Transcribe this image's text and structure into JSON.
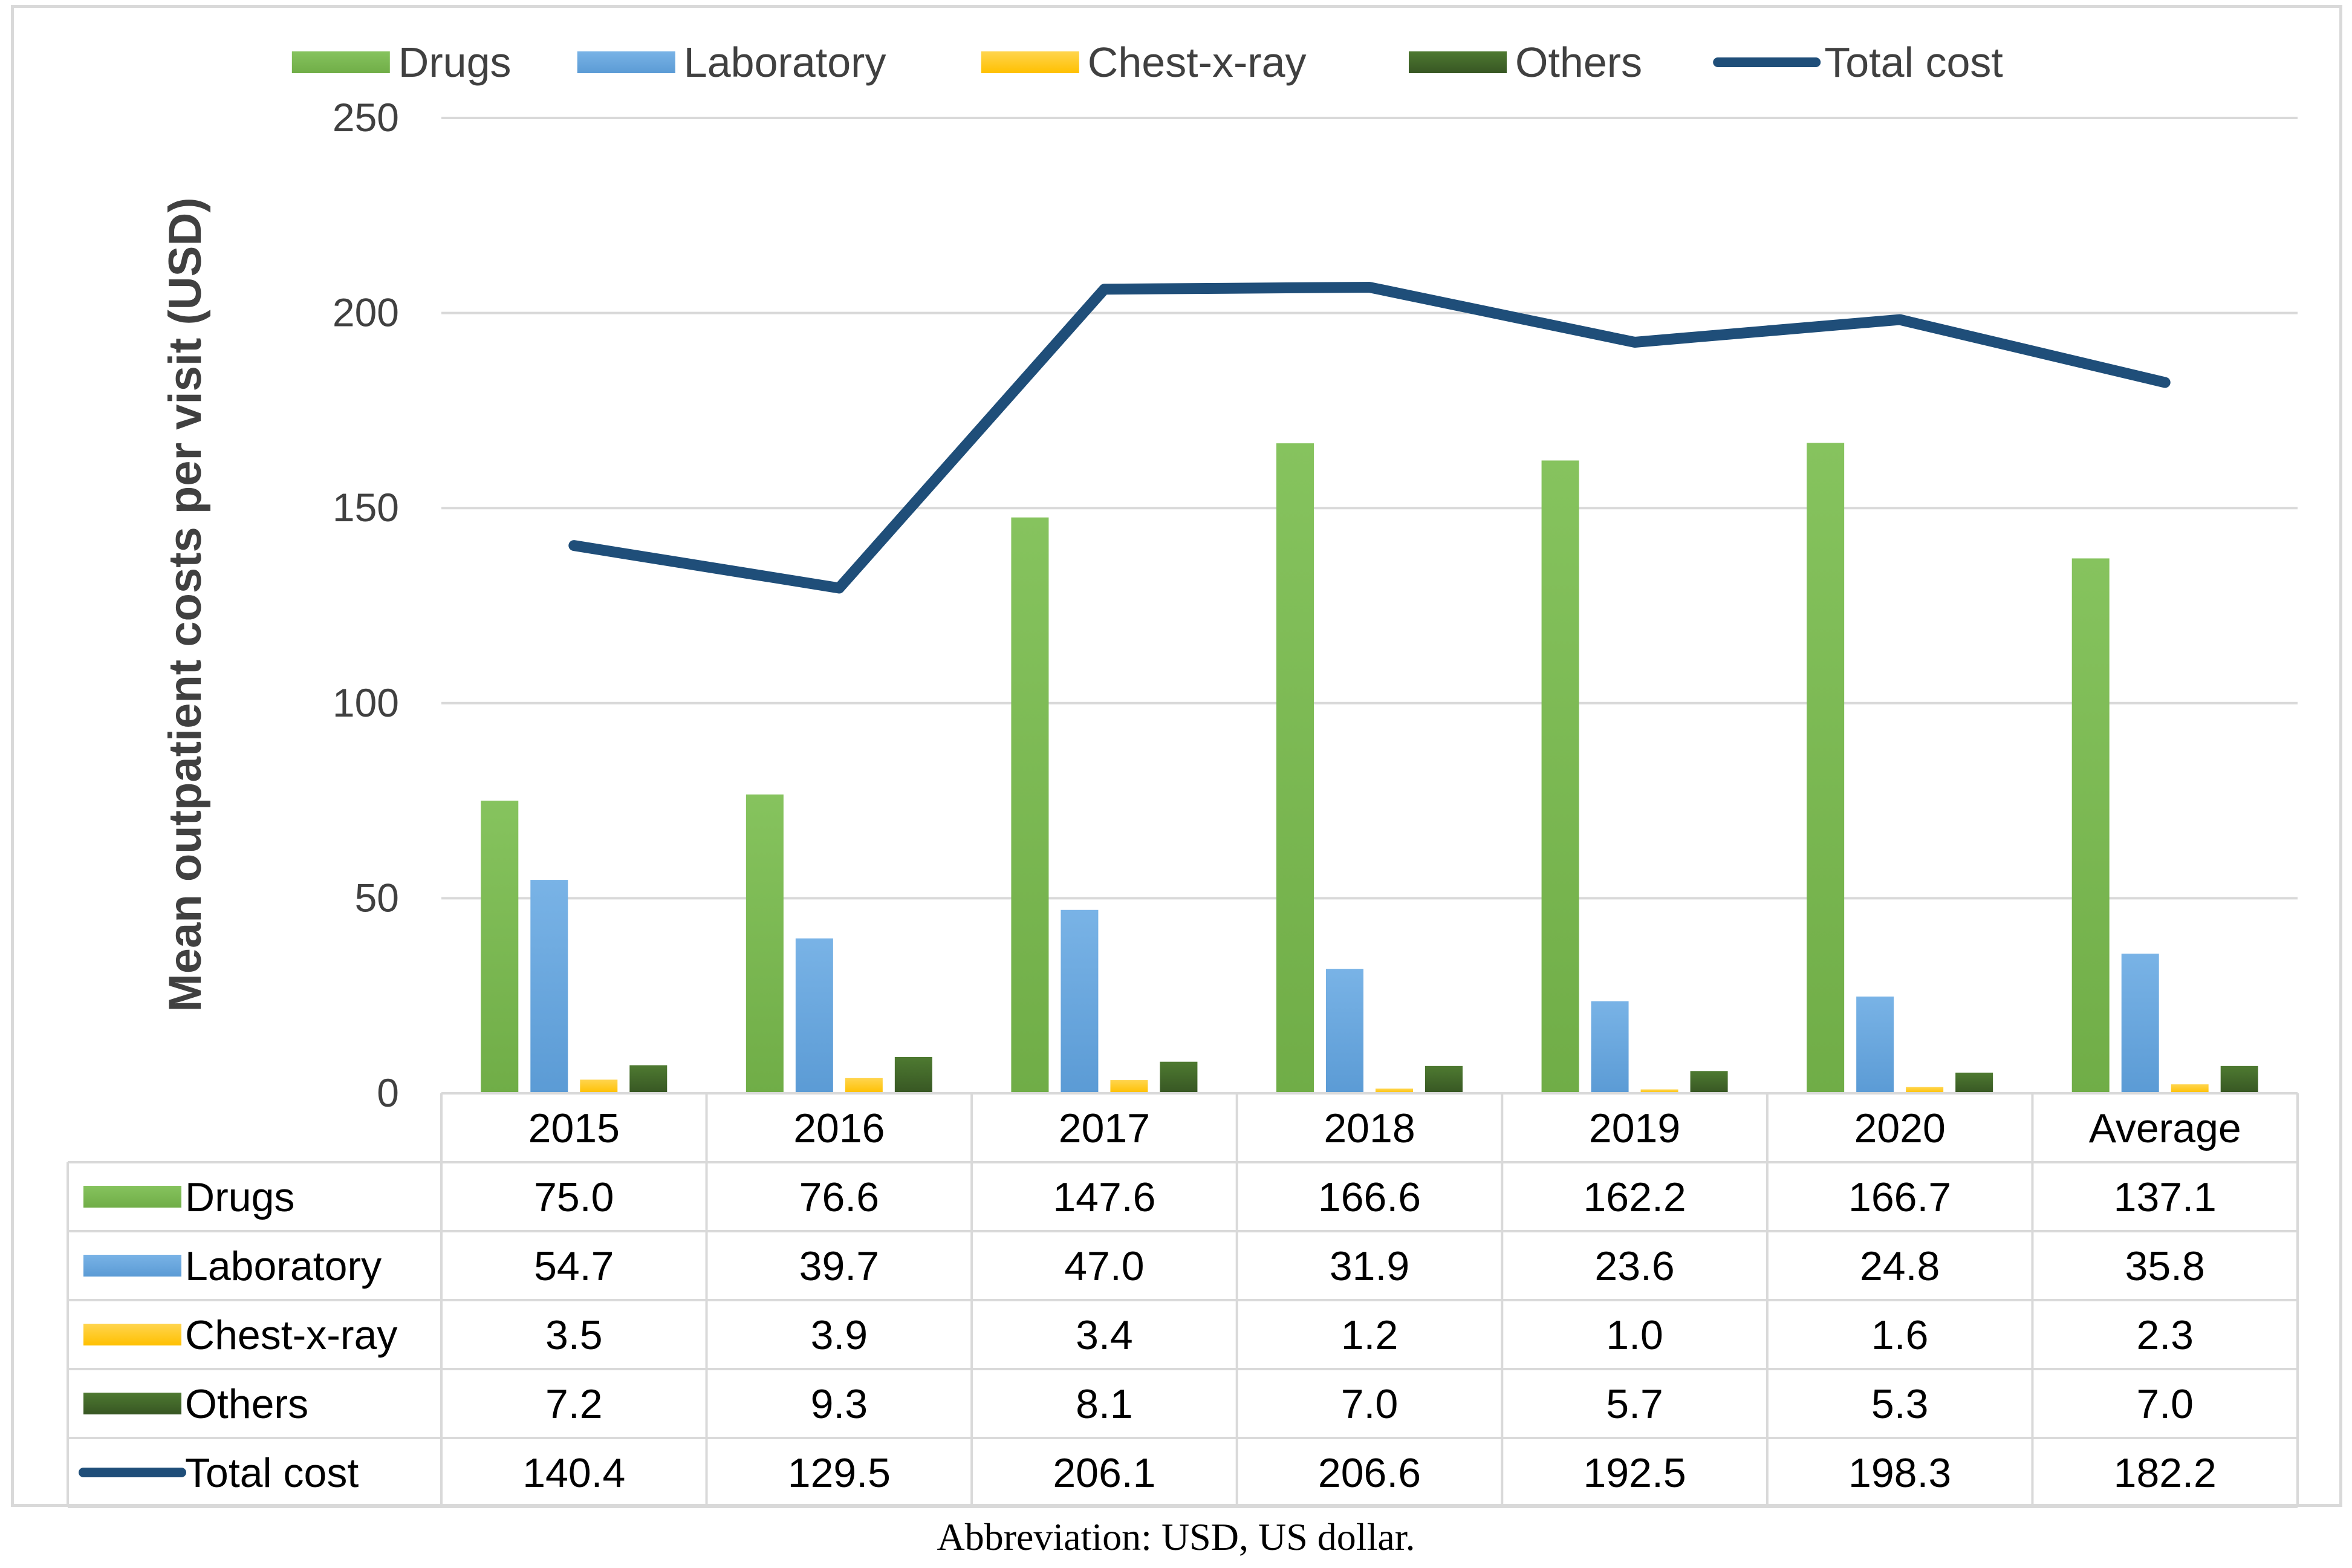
{
  "chart_data": {
    "type": "bar",
    "title": "",
    "xlabel": "",
    "ylabel": "Mean outpatient costs per visit  (USD)",
    "ylim": [
      0,
      250
    ],
    "yticks": [
      0,
      50,
      100,
      150,
      200,
      250
    ],
    "grid": true,
    "legend_position": "top",
    "categories": [
      "2015",
      "2016",
      "2017",
      "2018",
      "2019",
      "2020",
      "Average"
    ],
    "series": [
      {
        "name": "Drugs",
        "kind": "bar",
        "color": "#70ad47",
        "colorLight": "#86c35e",
        "values": [
          75.0,
          76.6,
          147.6,
          166.6,
          162.2,
          166.7,
          137.1
        ],
        "labels": [
          "75.0",
          "76.6",
          "147.6",
          "166.6",
          "162.2",
          "166.7",
          "137.1"
        ]
      },
      {
        "name": "Laboratory",
        "kind": "bar",
        "color": "#5b9bd5",
        "colorLight": "#79b3e6",
        "values": [
          54.7,
          39.7,
          47.0,
          31.9,
          23.6,
          24.8,
          35.8
        ],
        "labels": [
          "54.7",
          "39.7",
          "47.0",
          "31.9",
          "23.6",
          "24.8",
          "35.8"
        ]
      },
      {
        "name": "Chest-x-ray",
        "kind": "bar",
        "color": "#ffc000",
        "colorLight": "#ffd54f",
        "values": [
          3.5,
          3.9,
          3.4,
          1.2,
          1.0,
          1.6,
          2.3
        ],
        "labels": [
          "3.5",
          "3.9",
          "3.4",
          "1.2",
          "1.0",
          "1.6",
          "2.3"
        ]
      },
      {
        "name": "Others",
        "kind": "bar",
        "color": "#375623",
        "colorLight": "#4e7a31",
        "values": [
          7.2,
          9.3,
          8.1,
          7.0,
          5.7,
          5.3,
          7.0
        ],
        "labels": [
          "7.2",
          "9.3",
          "8.1",
          "7.0",
          "5.7",
          "5.3",
          "7.0"
        ]
      },
      {
        "name": "Total cost",
        "kind": "line",
        "color": "#1f4e79",
        "colorLight": "#1f4e79",
        "values": [
          140.4,
          129.5,
          206.1,
          206.6,
          192.5,
          198.3,
          182.2
        ],
        "labels": [
          "140.4",
          "129.5",
          "206.1",
          "206.6",
          "192.5",
          "198.3",
          "182.2"
        ]
      }
    ]
  },
  "caption": "Abbreviation: USD, US dollar."
}
